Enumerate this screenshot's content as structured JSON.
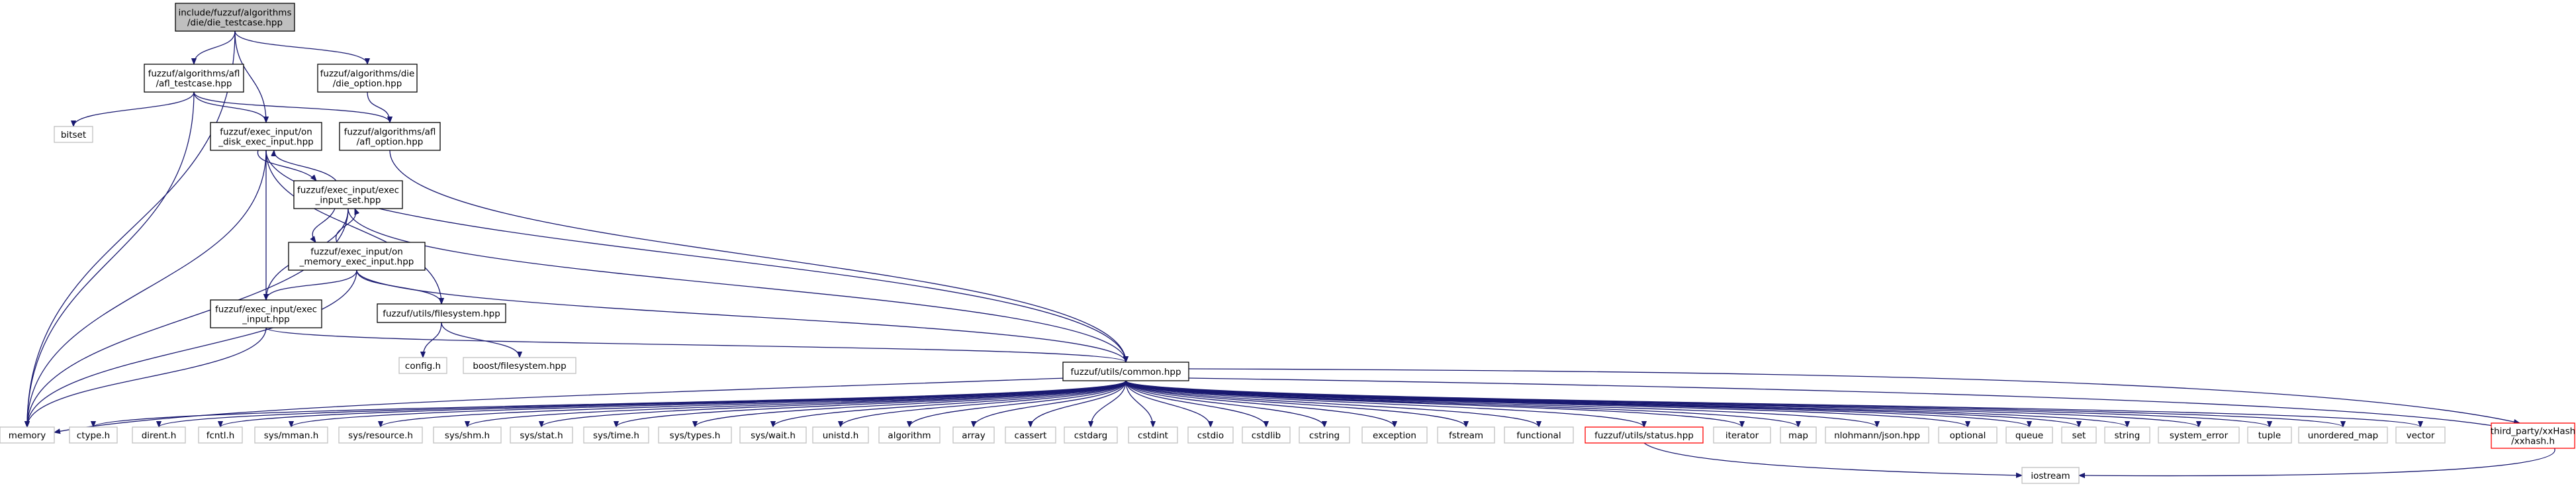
{
  "graph": {
    "edge_color": "#191970",
    "root_fill": "#bfbfbf",
    "nodes": {
      "root": {
        "lines": [
          "include/fuzzuf/algorithms",
          "/die/die_testcase.hpp"
        ],
        "style": "root"
      },
      "afltc": {
        "lines": [
          "fuzzuf/algorithms/afl",
          "/afl_testcase.hpp"
        ],
        "style": "normal"
      },
      "dieopt": {
        "lines": [
          "fuzzuf/algorithms/die",
          "/die_option.hpp"
        ],
        "style": "normal"
      },
      "bitset": {
        "lines": [
          "bitset"
        ],
        "style": "gray"
      },
      "ondisk": {
        "lines": [
          "fuzzuf/exec_input/on",
          "_disk_exec_input.hpp"
        ],
        "style": "normal"
      },
      "aflopt": {
        "lines": [
          "fuzzuf/algorithms/afl",
          "/afl_option.hpp"
        ],
        "style": "normal"
      },
      "eiset": {
        "lines": [
          "fuzzuf/exec_input/exec",
          "_input_set.hpp"
        ],
        "style": "normal"
      },
      "onmem": {
        "lines": [
          "fuzzuf/exec_input/on",
          "_memory_exec_input.hpp"
        ],
        "style": "normal"
      },
      "execin": {
        "lines": [
          "fuzzuf/exec_input/exec",
          "_input.hpp"
        ],
        "style": "normal"
      },
      "fsys": {
        "lines": [
          "fuzzuf/utils/filesystem.hpp"
        ],
        "style": "normal"
      },
      "config": {
        "lines": [
          "config.h"
        ],
        "style": "gray"
      },
      "boostfs": {
        "lines": [
          "boost/filesystem.hpp"
        ],
        "style": "gray"
      },
      "common": {
        "lines": [
          "fuzzuf/utils/common.hpp"
        ],
        "style": "normal"
      },
      "memory": {
        "lines": [
          "memory"
        ],
        "style": "gray"
      },
      "ctype": {
        "lines": [
          "ctype.h"
        ],
        "style": "gray"
      },
      "dirent": {
        "lines": [
          "dirent.h"
        ],
        "style": "gray"
      },
      "fcntl": {
        "lines": [
          "fcntl.h"
        ],
        "style": "gray"
      },
      "mman": {
        "lines": [
          "sys/mman.h"
        ],
        "style": "gray"
      },
      "resource": {
        "lines": [
          "sys/resource.h"
        ],
        "style": "gray"
      },
      "shm": {
        "lines": [
          "sys/shm.h"
        ],
        "style": "gray"
      },
      "stat": {
        "lines": [
          "sys/stat.h"
        ],
        "style": "gray"
      },
      "time": {
        "lines": [
          "sys/time.h"
        ],
        "style": "gray"
      },
      "types": {
        "lines": [
          "sys/types.h"
        ],
        "style": "gray"
      },
      "wait": {
        "lines": [
          "sys/wait.h"
        ],
        "style": "gray"
      },
      "unistd": {
        "lines": [
          "unistd.h"
        ],
        "style": "gray"
      },
      "algorithm": {
        "lines": [
          "algorithm"
        ],
        "style": "gray"
      },
      "array": {
        "lines": [
          "array"
        ],
        "style": "gray"
      },
      "cassert": {
        "lines": [
          "cassert"
        ],
        "style": "gray"
      },
      "cstdarg": {
        "lines": [
          "cstdarg"
        ],
        "style": "gray"
      },
      "cstdint": {
        "lines": [
          "cstdint"
        ],
        "style": "gray"
      },
      "cstdio": {
        "lines": [
          "cstdio"
        ],
        "style": "gray"
      },
      "cstdlib": {
        "lines": [
          "cstdlib"
        ],
        "style": "gray"
      },
      "cstring": {
        "lines": [
          "cstring"
        ],
        "style": "gray"
      },
      "exception": {
        "lines": [
          "exception"
        ],
        "style": "gray"
      },
      "fstream": {
        "lines": [
          "fstream"
        ],
        "style": "gray"
      },
      "functional": {
        "lines": [
          "functional"
        ],
        "style": "gray"
      },
      "status": {
        "lines": [
          "fuzzuf/utils/status.hpp"
        ],
        "style": "red"
      },
      "iterator": {
        "lines": [
          "iterator"
        ],
        "style": "gray"
      },
      "map": {
        "lines": [
          "map"
        ],
        "style": "gray"
      },
      "json": {
        "lines": [
          "nlohmann/json.hpp"
        ],
        "style": "gray"
      },
      "optional": {
        "lines": [
          "optional"
        ],
        "style": "gray"
      },
      "queue": {
        "lines": [
          "queue"
        ],
        "style": "gray"
      },
      "set": {
        "lines": [
          "set"
        ],
        "style": "gray"
      },
      "string": {
        "lines": [
          "string"
        ],
        "style": "gray"
      },
      "syserr": {
        "lines": [
          "system_error"
        ],
        "style": "gray"
      },
      "tuple": {
        "lines": [
          "tuple"
        ],
        "style": "gray"
      },
      "umap": {
        "lines": [
          "unordered_map"
        ],
        "style": "gray"
      },
      "vector": {
        "lines": [
          "vector"
        ],
        "style": "gray"
      },
      "xxhash": {
        "lines": [
          "third_party/xxHash",
          "/xxhash.h"
        ],
        "style": "red"
      },
      "iostream": {
        "lines": [
          "iostream"
        ],
        "style": "gray"
      }
    },
    "edges": [
      [
        "root",
        "afltc"
      ],
      [
        "root",
        "dieopt"
      ],
      [
        "root",
        "ondisk"
      ],
      [
        "root",
        "memory"
      ],
      [
        "afltc",
        "bitset"
      ],
      [
        "afltc",
        "ondisk"
      ],
      [
        "afltc",
        "aflopt"
      ],
      [
        "afltc",
        "memory"
      ],
      [
        "dieopt",
        "aflopt"
      ],
      [
        "aflopt",
        "common"
      ],
      [
        "ondisk",
        "eiset"
      ],
      [
        "ondisk",
        "execin"
      ],
      [
        "ondisk",
        "fsys"
      ],
      [
        "ondisk",
        "common"
      ],
      [
        "ondisk",
        "memory"
      ],
      [
        "eiset",
        "ondisk"
      ],
      [
        "eiset",
        "onmem"
      ],
      [
        "eiset",
        "execin"
      ],
      [
        "eiset",
        "common"
      ],
      [
        "eiset",
        "memory"
      ],
      [
        "onmem",
        "eiset"
      ],
      [
        "onmem",
        "execin"
      ],
      [
        "onmem",
        "fsys"
      ],
      [
        "onmem",
        "common"
      ],
      [
        "onmem",
        "memory"
      ],
      [
        "execin",
        "common"
      ],
      [
        "execin",
        "memory"
      ],
      [
        "fsys",
        "config"
      ],
      [
        "fsys",
        "boostfs"
      ],
      [
        "common",
        "memory"
      ],
      [
        "common",
        "ctype"
      ],
      [
        "common",
        "dirent"
      ],
      [
        "common",
        "fcntl"
      ],
      [
        "common",
        "mman"
      ],
      [
        "common",
        "resource"
      ],
      [
        "common",
        "shm"
      ],
      [
        "common",
        "stat"
      ],
      [
        "common",
        "time"
      ],
      [
        "common",
        "types"
      ],
      [
        "common",
        "wait"
      ],
      [
        "common",
        "unistd"
      ],
      [
        "common",
        "algorithm"
      ],
      [
        "common",
        "array"
      ],
      [
        "common",
        "cassert"
      ],
      [
        "common",
        "cstdarg"
      ],
      [
        "common",
        "cstdint"
      ],
      [
        "common",
        "cstdio"
      ],
      [
        "common",
        "cstdlib"
      ],
      [
        "common",
        "cstring"
      ],
      [
        "common",
        "exception"
      ],
      [
        "common",
        "fstream"
      ],
      [
        "common",
        "functional"
      ],
      [
        "common",
        "status"
      ],
      [
        "common",
        "iterator"
      ],
      [
        "common",
        "map"
      ],
      [
        "common",
        "json"
      ],
      [
        "common",
        "optional"
      ],
      [
        "common",
        "queue"
      ],
      [
        "common",
        "set"
      ],
      [
        "common",
        "string"
      ],
      [
        "common",
        "syserr"
      ],
      [
        "common",
        "tuple"
      ],
      [
        "common",
        "umap"
      ],
      [
        "common",
        "vector"
      ],
      [
        "common",
        "xxhash"
      ],
      [
        "common",
        "iostream"
      ],
      [
        "status",
        "iostream"
      ]
    ]
  }
}
